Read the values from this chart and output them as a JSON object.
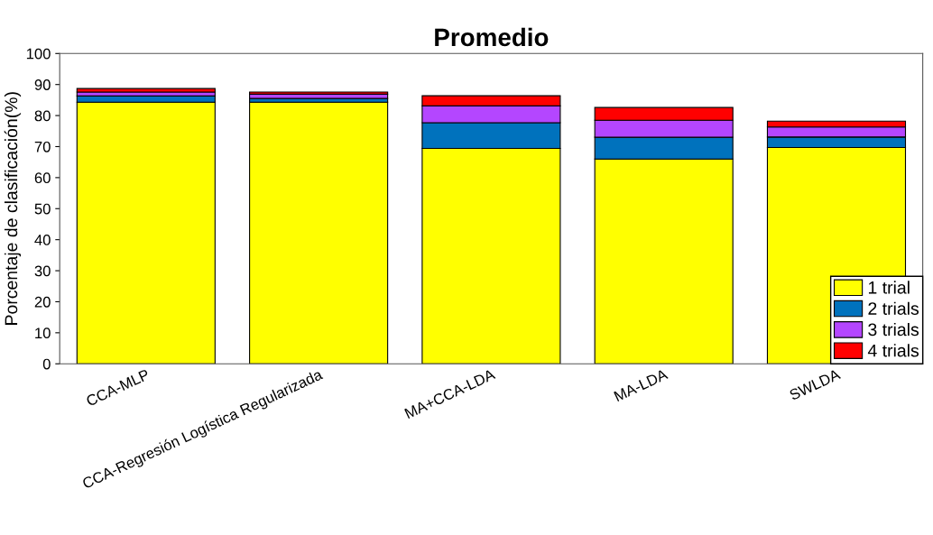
{
  "chart_data": {
    "type": "bar",
    "title": "Promedio",
    "ylabel": "Porcentaje de clasificación(%)",
    "categories": [
      "CCA-MLP",
      "CCA-Regresión Logística Regularizada",
      "MA+CCA-LDA",
      "MA-LDA",
      "SWLDA"
    ],
    "stacked": true,
    "series": [
      {
        "name": "1 trial",
        "color": "#ffff00",
        "values": [
          84.3,
          84.3,
          69.4,
          66.0,
          69.7
        ]
      },
      {
        "name": "2 trials",
        "color": "#0072bd",
        "values": [
          2.0,
          1.2,
          8.3,
          7.0,
          3.4
        ]
      },
      {
        "name": "3 trials",
        "color": "#b446ff",
        "values": [
          1.3,
          1.4,
          5.4,
          5.5,
          3.2
        ]
      },
      {
        "name": "4 trials",
        "color": "#ff0000",
        "values": [
          1.1,
          0.7,
          3.3,
          4.1,
          1.9
        ]
      }
    ],
    "ylim": [
      0,
      100
    ],
    "yticks": [
      0,
      10,
      20,
      30,
      40,
      50,
      60,
      70,
      80,
      90,
      100
    ],
    "grid": false,
    "legend": "bottom right"
  }
}
